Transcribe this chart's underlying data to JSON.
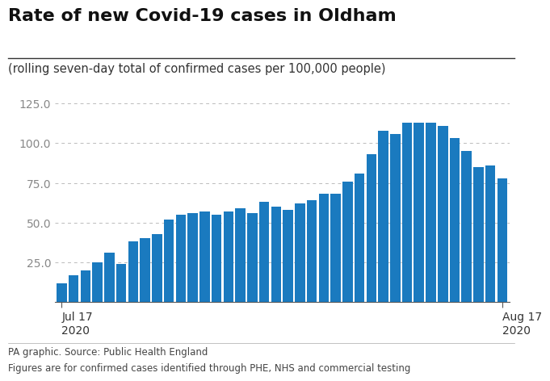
{
  "title": "Rate of new Covid-19 cases in Oldham",
  "subtitle": "(rolling seven-day total of confirmed cases per 100,000 people)",
  "bar_color": "#1a7abf",
  "bar_values": [
    12,
    17,
    20,
    25,
    31,
    24,
    38,
    40,
    43,
    52,
    55,
    56,
    57,
    55,
    57,
    59,
    56,
    63,
    60,
    58,
    62,
    64,
    68,
    68,
    76,
    81,
    93,
    108,
    106,
    113,
    113,
    113,
    111,
    103,
    95,
    85,
    86,
    78
  ],
  "x_tick_positions": [
    0,
    37
  ],
  "x_tick_labels": [
    "Jul 17\n2020",
    "Aug 17\n2020"
  ],
  "ylim": [
    0,
    135
  ],
  "yticks": [
    25.0,
    50.0,
    75.0,
    100.0,
    125.0
  ],
  "footer_line1": "PA graphic. Source: Public Health England",
  "footer_line2": "Figures are for confirmed cases identified through PHE, NHS and commercial testing",
  "background_color": "#ffffff",
  "grid_color": "#bbbbbb",
  "title_fontsize": 16,
  "subtitle_fontsize": 10.5,
  "axis_label_fontsize": 10,
  "footer_fontsize": 8.5
}
